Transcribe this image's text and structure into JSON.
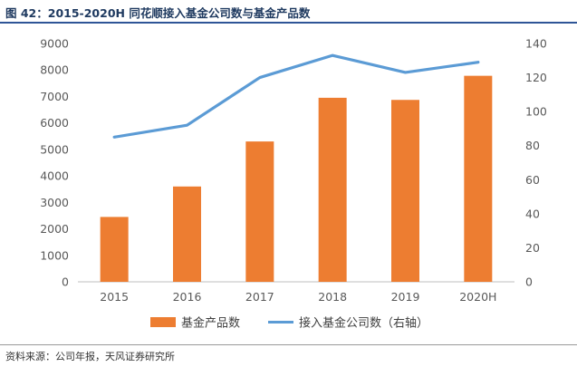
{
  "header": {
    "title": "图 42：2015-2020H 同花顺接入基金公司数与基金产品数"
  },
  "footer": {
    "source": "资料来源：公司年报，天风证券研究所"
  },
  "colors": {
    "bar": "#ED7D31",
    "line": "#5B9BD5",
    "axis": "#BFBFBF",
    "title_rule": "#2F5597"
  },
  "chart_data": {
    "type": "bar",
    "categories": [
      "2015",
      "2016",
      "2017",
      "2018",
      "2019",
      "2020H"
    ],
    "series": [
      {
        "name": "基金产品数",
        "type": "bar",
        "axis": "left",
        "values": [
          2450,
          3600,
          5300,
          6950,
          6870,
          7780
        ]
      },
      {
        "name": "接入基金公司数（右轴）",
        "type": "line",
        "axis": "right",
        "values": [
          85,
          92,
          120,
          133,
          123,
          129
        ]
      }
    ],
    "y_left": {
      "min": 0,
      "max": 9000,
      "ticks": [
        "0",
        "1000",
        "2000",
        "3000",
        "4000",
        "5000",
        "6000",
        "7000",
        "8000",
        "9000"
      ]
    },
    "y_right": {
      "min": 0,
      "max": 140,
      "ticks": [
        "0",
        "20",
        "40",
        "60",
        "80",
        "100",
        "120",
        "140"
      ]
    },
    "grid": false,
    "legend_position": "bottom"
  }
}
